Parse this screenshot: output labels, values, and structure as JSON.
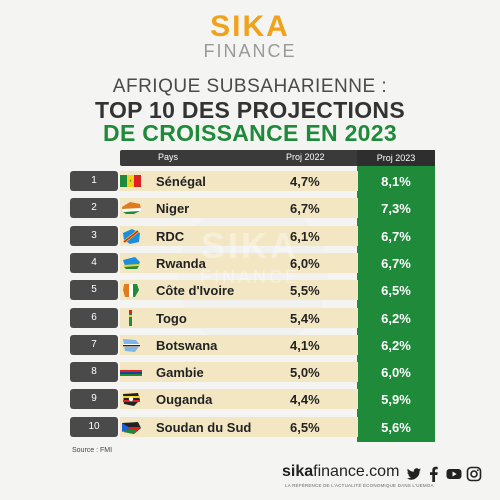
{
  "brand": {
    "name_top": "SIKA",
    "name_bottom": "FINANCE"
  },
  "title": {
    "line1": "AFRIQUE SUBSAHARIENNE :",
    "line2": "TOP 10 DES PROJECTIONS",
    "line3": "DE CROISSANCE EN 2023"
  },
  "table": {
    "headers": {
      "country": "Pays",
      "proj2022": "Proj 2022",
      "proj2023": "Proj 2023"
    },
    "rows": [
      {
        "rank": "1",
        "country": "Sénégal",
        "proj2022": "4,7%",
        "proj2023": "8,1%"
      },
      {
        "rank": "2",
        "country": "Niger",
        "proj2022": "6,7%",
        "proj2023": "7,3%"
      },
      {
        "rank": "3",
        "country": "RDC",
        "proj2022": "6,1%",
        "proj2023": "6,7%"
      },
      {
        "rank": "4",
        "country": "Rwanda",
        "proj2022": "6,0%",
        "proj2023": "6,7%"
      },
      {
        "rank": "5",
        "country": "Côte d'Ivoire",
        "proj2022": "5,5%",
        "proj2023": "6,5%"
      },
      {
        "rank": "6",
        "country": "Togo",
        "proj2022": "5,4%",
        "proj2023": "6,2%"
      },
      {
        "rank": "7",
        "country": "Botswana",
        "proj2022": "4,1%",
        "proj2023": "6,2%"
      },
      {
        "rank": "8",
        "country": "Gambie",
        "proj2022": "5,0%",
        "proj2023": "6,0%"
      },
      {
        "rank": "9",
        "country": "Ouganda",
        "proj2022": "4,4%",
        "proj2023": "5,9%"
      },
      {
        "rank": "10",
        "country": "Soudan du Sud",
        "proj2022": "6,5%",
        "proj2023": "5,6%"
      }
    ]
  },
  "source": "Source : FMI",
  "footer": {
    "site_bold": "sika",
    "site_rest": "finance.com",
    "tagline": "LA RÉFÉRENCE DE L'ACTUALITÉ ÉCONOMIQUE DANS L'UEMOA",
    "socials": [
      "twitter-icon",
      "facebook-icon",
      "youtube-icon",
      "instagram-icon"
    ]
  },
  "colors": {
    "brand_orange": "#f0a21b",
    "accent_green": "#1e8a3a",
    "row_band": "#f3e7c3",
    "dark": "#3a3a3a"
  }
}
